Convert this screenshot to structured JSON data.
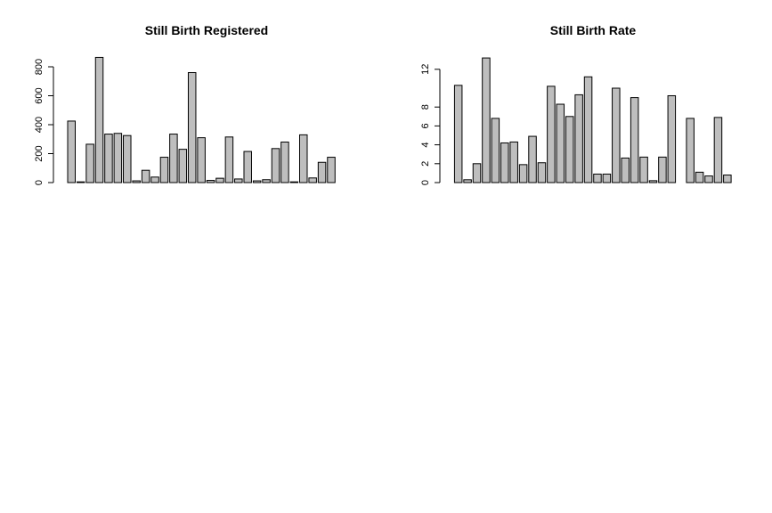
{
  "chart_data": [
    {
      "type": "bar",
      "title": "Still Birth Registered",
      "xlabel": "",
      "ylabel": "",
      "ylim": [
        0,
        870
      ],
      "yticks": [
        0,
        200,
        400,
        600,
        800
      ],
      "ytick_labels": [
        "0",
        "200",
        "400",
        "600",
        "800"
      ],
      "legend": "none",
      "grid": false,
      "bar_fill": "#bebebe",
      "values": [
        425,
        5,
        265,
        865,
        335,
        340,
        325,
        12,
        85,
        38,
        175,
        335,
        230,
        760,
        310,
        15,
        30,
        315,
        25,
        215,
        12,
        20,
        235,
        280,
        5,
        330,
        32,
        140,
        175
      ]
    },
    {
      "type": "bar",
      "title": "Still Birth Rate",
      "xlabel": "",
      "ylabel": "",
      "ylim": [
        0,
        13.3
      ],
      "yticks": [
        0,
        2,
        4,
        6,
        8,
        12
      ],
      "ytick_labels": [
        "0",
        "2",
        "4",
        "6",
        "8",
        "12"
      ],
      "legend": "none",
      "grid": false,
      "bar_fill": "#bebebe",
      "values": [
        0,
        10.3,
        0.3,
        2.0,
        13.2,
        6.8,
        4.2,
        4.3,
        1.9,
        4.9,
        2.1,
        10.2,
        8.3,
        7.0,
        9.3,
        11.2,
        0.9,
        0.9,
        10.0,
        2.6,
        9.0,
        2.7,
        0.2,
        2.7,
        9.2,
        0,
        6.8,
        1.1,
        0.7,
        6.9,
        0.8
      ]
    }
  ]
}
